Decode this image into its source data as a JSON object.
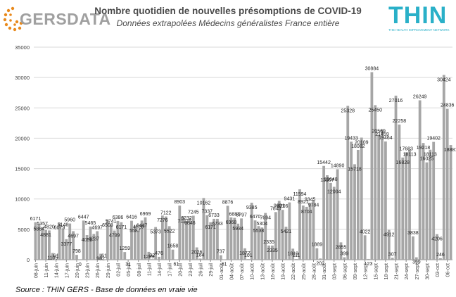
{
  "header": {
    "title": "Nombre quotidien de nouvelles présomptions de COVID-19",
    "subtitle": "Données extrapolées Médecins généralistes France entière"
  },
  "logos": {
    "left_text": "GERSDATA",
    "right_text": "THIN",
    "right_tagline": "THE HEALTH IMPROVEMENT NETWORK"
  },
  "source": "Source : THIN GERS - Base de données en vraie vie",
  "colors": {
    "bar": "#a6a6a6",
    "grid": "#d9d9d9",
    "axis": "#888888",
    "text": "#404040",
    "gers_dots": "#e8891c",
    "thin": "#2ab0c8"
  },
  "chart_data": {
    "type": "bar",
    "title": "Nombre quotidien de nouvelles présomptions de COVID-19",
    "subtitle": "Données extrapolées Médecins généralistes France entière",
    "ylim": [
      0,
      35000
    ],
    "yticks": [
      0,
      5000,
      10000,
      15000,
      20000,
      25000,
      30000,
      35000
    ],
    "grid": true,
    "legend": "none",
    "xtick_labels": [
      "08-juin",
      "11-juin",
      "14-juin",
      "17-juin",
      "20-juin",
      "23-juin",
      "26-juin",
      "29-juin",
      "02-juil",
      "05-juil",
      "08-juil",
      "11-juil",
      "14-juil",
      "17-juil",
      "20-juil",
      "23-juil",
      "26-juil",
      "29-juil",
      "01-août",
      "04-août",
      "07-août",
      "10-août",
      "13-août",
      "16-août",
      "19-août",
      "22-août",
      "25-août",
      "28-août",
      "31-août",
      "03-sept",
      "06-sept",
      "09-sept",
      "12-sept",
      "15-sept",
      "18-sept",
      "21-sept",
      "24-sept",
      "27-sept",
      "30-sept",
      "03-oct",
      "06-oct"
    ],
    "values": [
      6171,
      5864,
      5357,
      4881,
      4820,
      1105,
      61,
      6079,
      5148,
      3377,
      5960,
      4697,
      798,
      0,
      6447,
      4052,
      5465,
      4237,
      4697,
      982,
      61,
      6508,
      5741,
      4799,
      6386,
      6171,
      1259,
      31,
      6416,
      5587,
      4820,
      6447,
      6969,
      1289,
      92,
      5373,
      476,
      7276,
      7122,
      5522,
      1658,
      61,
      8903,
      7122,
      6232,
      6846,
      7245,
      2026,
      184,
      10162,
      7337,
      6171,
      6733,
      6733,
      737,
      61,
      8876,
      6968,
      6888,
      5934,
      6797,
      1877,
      101,
      9385,
      6470,
      5538,
      5304,
      7694,
      2335,
      2335,
      7845,
      9691,
      8206,
      5421,
      9431,
      1819,
      111,
      11594,
      8921,
      8704,
      9345,
      9784,
      1889,
      202,
      15442,
      13907,
      12648,
      12004,
      14890,
      2855,
      399,
      25328,
      19433,
      15718,
      18082,
      20109,
      4022,
      123,
      30884,
      25450,
      20569,
      21459,
      19464,
      4912,
      307,
      27016,
      22258,
      16828,
      17683,
      18113,
      3838,
      399,
      26249,
      19218,
      16025,
      18113,
      19402,
      4206,
      246,
      30424,
      24836,
      18881
    ]
  }
}
